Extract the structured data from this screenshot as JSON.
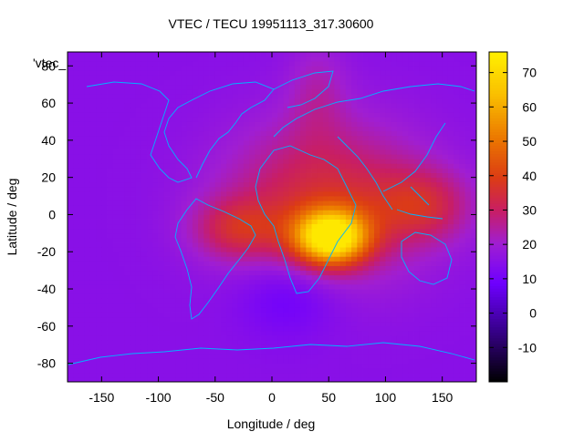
{
  "chart_data": {
    "type": "heatmap",
    "title": "VTEC / TECU 19951113_317.30600",
    "xlabel": "Longitude / deg",
    "ylabel": "Latitude / deg",
    "corner_label": "'vtec_",
    "xlim": [
      -180,
      180
    ],
    "ylim": [
      -90,
      87.5
    ],
    "x_ticks": [
      -150,
      -100,
      -50,
      0,
      50,
      100,
      150
    ],
    "y_ticks": [
      -80,
      -60,
      -40,
      -20,
      0,
      20,
      40,
      60,
      80
    ],
    "colorbar": {
      "range": [
        -20,
        76
      ],
      "ticks": [
        -10,
        0,
        10,
        20,
        30,
        40,
        50,
        60,
        70
      ],
      "palette": "black-blue-purple-red-orange-yellow"
    },
    "grid": false,
    "background_value": 15,
    "features": [
      {
        "name": "equatorial peak",
        "lon": 52,
        "lat": -12,
        "value": 74
      },
      {
        "name": "african/asian enhancement",
        "lon_range": [
          -20,
          115
        ],
        "lat_range": [
          -25,
          40
        ],
        "value": 40
      },
      {
        "name": "south atlantic band",
        "lon_range": [
          -60,
          0
        ],
        "lat_range": [
          -20,
          5
        ],
        "value": 32
      },
      {
        "name": "pacific/indonesia band",
        "lon_range": [
          100,
          165
        ],
        "lat_range": [
          -10,
          20
        ],
        "value": 32
      },
      {
        "name": "polar stripe",
        "lon_range": [
          20,
          60
        ],
        "lat_range": [
          45,
          87.5
        ],
        "value": 25
      },
      {
        "name": "southern low",
        "lon_range": [
          -20,
          50
        ],
        "lat_range": [
          -60,
          -25
        ],
        "value": 5
      }
    ]
  }
}
